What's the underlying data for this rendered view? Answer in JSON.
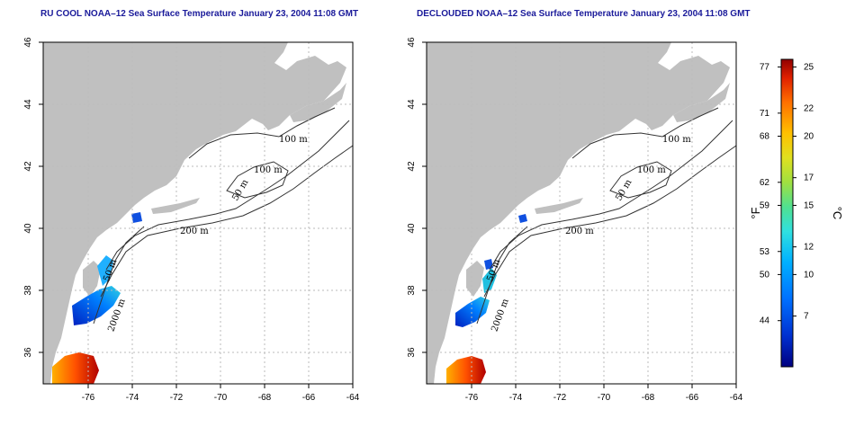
{
  "maps": [
    {
      "id": "left",
      "title": "RU COOL NOAA–12 Sea Surface Temperature January 23, 2004 11:08 GMT",
      "x_ticks": [
        "-76",
        "-74",
        "-72",
        "-70",
        "-68",
        "-66",
        "-64"
      ],
      "y_ticks": [
        "36",
        "38",
        "40",
        "42",
        "44",
        "46"
      ],
      "contour_labels": [
        "100 m",
        "100 m",
        "50 m",
        "200 m",
        "50 m",
        "2000 m"
      ]
    },
    {
      "id": "right",
      "title": "DECLOUDED NOAA–12 Sea Surface Temperature January 23, 2004 11:08 GMT",
      "x_ticks": [
        "-76",
        "-74",
        "-72",
        "-70",
        "-68",
        "-66",
        "-64"
      ],
      "y_ticks": [
        "36",
        "38",
        "40",
        "42",
        "44",
        "46"
      ],
      "contour_labels": [
        "100 m",
        "100 m",
        "50 m",
        "200 m",
        "50 m",
        "2000 m"
      ]
    }
  ],
  "colorbar": {
    "fahrenheit_ticks": [
      "77",
      "71",
      "68",
      "62",
      "59",
      "53",
      "50",
      "44"
    ],
    "celsius_ticks": [
      "25",
      "22",
      "20",
      "17",
      "15",
      "12",
      "10",
      "7"
    ],
    "fahrenheit_unit": "°F",
    "celsius_unit": "°C",
    "colors": [
      "#000080",
      "#0030d0",
      "#0070ff",
      "#00b0ff",
      "#30e0e0",
      "#50e090",
      "#a0e040",
      "#e0e020",
      "#ffc000",
      "#ff7000",
      "#e02000",
      "#900000"
    ]
  },
  "colors": {
    "title": "#1a1a9a",
    "land": "#c0c0c0",
    "ocean": "#ffffff",
    "grid": "#bbbbbb"
  }
}
